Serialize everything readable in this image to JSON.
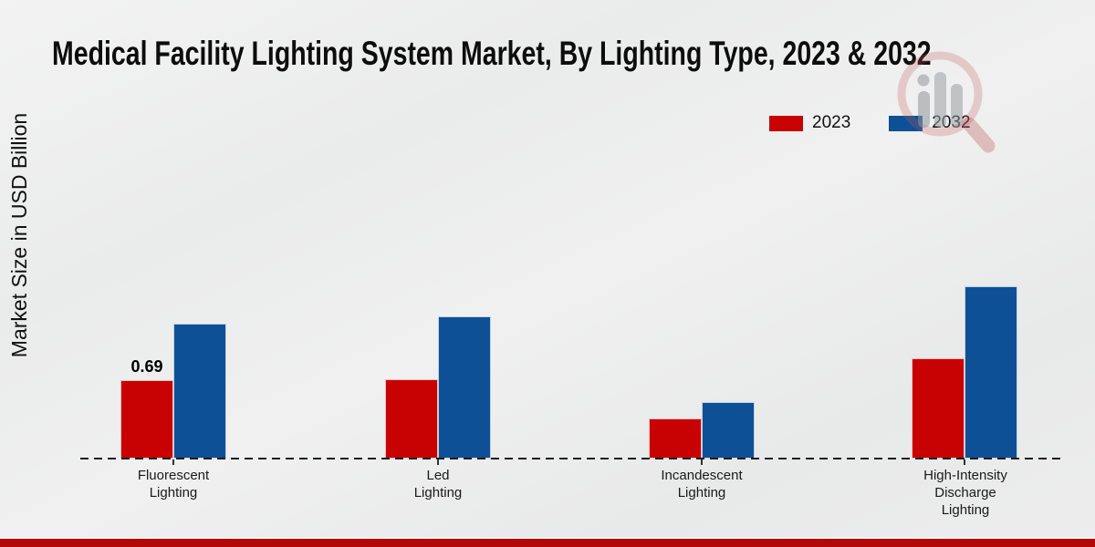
{
  "page": {
    "title": "Medical Facility Lighting System Market, By Lighting Type, 2023 & 2032"
  },
  "chart_data": {
    "type": "bar",
    "title": "Medical Facility Lighting System Market, By Lighting Type, 2023 & 2032",
    "xlabel": "",
    "ylabel": "Market Size in USD Billion",
    "categories": [
      "Fluorescent\nLighting",
      "Led\nLighting",
      "Incandescent\nLighting",
      "High-Intensity\nDischarge\nLighting"
    ],
    "series": [
      {
        "name": "2023",
        "color": "#c80202",
        "values": [
          0.69,
          0.7,
          0.35,
          0.88
        ]
      },
      {
        "name": "2032",
        "color": "#0e5095",
        "values": [
          1.19,
          1.25,
          0.5,
          1.52
        ]
      }
    ],
    "annotations": [
      {
        "series": "2023",
        "category_index": 0,
        "text": "0.69"
      }
    ],
    "ylim": [
      0,
      3.2
    ],
    "grid": false,
    "legend_position": "top-right",
    "baseline_style": "dashed",
    "unit": "USD Billion"
  },
  "watermark": {
    "name": "market-research-magnifier-logo"
  },
  "footer": {
    "bar_color": "#b20808"
  }
}
